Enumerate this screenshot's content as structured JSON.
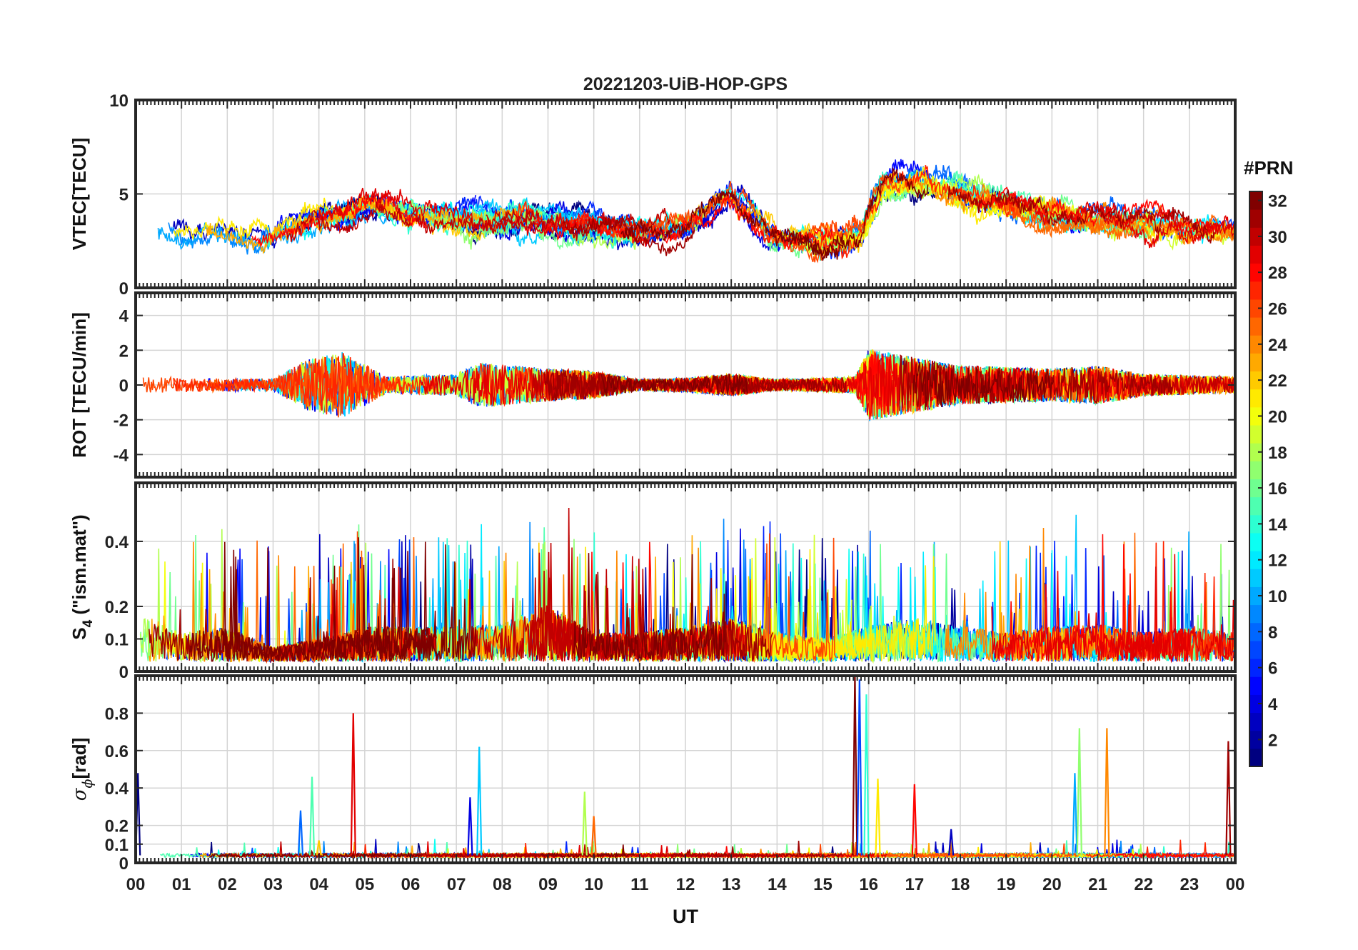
{
  "chart_data": {
    "type": "line",
    "title": "20221203-UiB-HOP-GPS",
    "xlabel": "UT",
    "x_range_hours": [
      0,
      24
    ],
    "x_ticks": [
      "00",
      "01",
      "02",
      "03",
      "04",
      "05",
      "06",
      "07",
      "08",
      "09",
      "10",
      "11",
      "12",
      "13",
      "14",
      "15",
      "16",
      "17",
      "18",
      "19",
      "20",
      "21",
      "22",
      "23",
      "00"
    ],
    "grid": true,
    "colorbar": {
      "title": "#PRN",
      "range": [
        1,
        32
      ],
      "ticks": [
        "2",
        "4",
        "6",
        "8",
        "10",
        "12",
        "14",
        "16",
        "18",
        "20",
        "22",
        "24",
        "26",
        "28",
        "30",
        "32"
      ],
      "colormap": "jet",
      "placement": "right"
    },
    "panels": [
      {
        "id": "vtec",
        "ylabel_parts": [
          "VTEC[TECU]"
        ],
        "ylim": [
          0,
          10
        ],
        "yticks": [
          0,
          5,
          10
        ],
        "ytick_labels": [
          "0",
          "5",
          "10"
        ],
        "activity_profile": [
          [
            0,
            3.3
          ],
          [
            2,
            2.8
          ],
          [
            3,
            2.6
          ],
          [
            4,
            3.8
          ],
          [
            5,
            4.3
          ],
          [
            7,
            3.7
          ],
          [
            8,
            3.6
          ],
          [
            9,
            3.7
          ],
          [
            10,
            3.4
          ],
          [
            11,
            3.0
          ],
          [
            12,
            3.3
          ],
          [
            13,
            4.8
          ],
          [
            14,
            2.6
          ],
          [
            15,
            2.4
          ],
          [
            15.8,
            2.8
          ],
          [
            16.3,
            5.3
          ],
          [
            17,
            5.6
          ],
          [
            18,
            5.0
          ],
          [
            19,
            4.4
          ],
          [
            20,
            4.0
          ],
          [
            21,
            3.7
          ],
          [
            22,
            3.5
          ],
          [
            23,
            3.2
          ],
          [
            24,
            3.0
          ]
        ],
        "amplitude": 1.2
      },
      {
        "id": "rot",
        "ylabel_parts": [
          "ROT [TECU/min]"
        ],
        "ylim": [
          -5.3,
          5.3
        ],
        "yticks": [
          -4,
          -2,
          0,
          2,
          4
        ],
        "ytick_labels": [
          "-4",
          "-2",
          "0",
          "2",
          "4"
        ],
        "activity_profile": [
          [
            0,
            0.3
          ],
          [
            3,
            0.2
          ],
          [
            3.7,
            0.9
          ],
          [
            4.5,
            1.2
          ],
          [
            5.5,
            0.3
          ],
          [
            7,
            0.4
          ],
          [
            7.5,
            0.8
          ],
          [
            9,
            0.6
          ],
          [
            10,
            0.5
          ],
          [
            11,
            0.2
          ],
          [
            12,
            0.25
          ],
          [
            13,
            0.4
          ],
          [
            14,
            0.2
          ],
          [
            15.7,
            0.3
          ],
          [
            16,
            1.3
          ],
          [
            17,
            1.0
          ],
          [
            18,
            0.7
          ],
          [
            20,
            0.6
          ],
          [
            21,
            0.7
          ],
          [
            22,
            0.4
          ],
          [
            24,
            0.3
          ]
        ],
        "amplitude": 1.0
      },
      {
        "id": "s4",
        "ylabel_parts": [
          "S",
          "4",
          " (\"ism.mat\")"
        ],
        "ylim": [
          0,
          0.58
        ],
        "yticks": [
          0,
          0.1,
          0.2,
          0.4
        ],
        "ytick_labels": [
          "0",
          "0.1",
          "0.2",
          "0.4"
        ],
        "activity_profile": [
          [
            0,
            0.18
          ],
          [
            1,
            0.1
          ],
          [
            2,
            0.12
          ],
          [
            3,
            0.05
          ],
          [
            4,
            0.08
          ],
          [
            5,
            0.12
          ],
          [
            7,
            0.12
          ],
          [
            8,
            0.13
          ],
          [
            9,
            0.2
          ],
          [
            10,
            0.1
          ],
          [
            11,
            0.1
          ],
          [
            12,
            0.12
          ],
          [
            13,
            0.15
          ],
          [
            14,
            0.1
          ],
          [
            15,
            0.08
          ],
          [
            16,
            0.12
          ],
          [
            17,
            0.15
          ],
          [
            18,
            0.12
          ],
          [
            19,
            0.1
          ],
          [
            20,
            0.12
          ],
          [
            21,
            0.13
          ],
          [
            22,
            0.1
          ],
          [
            23,
            0.12
          ],
          [
            24,
            0.1
          ]
        ],
        "amplitude": 0.1
      },
      {
        "id": "sigma_phi",
        "ylabel_parts": [
          "σ",
          "ϕ",
          "[rad]"
        ],
        "ylim": [
          0,
          1.0
        ],
        "yticks": [
          0,
          0.1,
          0.2,
          0.4,
          0.6,
          0.8
        ],
        "ytick_labels": [
          "0",
          "0.1",
          "0.2",
          "0.4",
          "0.6",
          "0.8"
        ],
        "activity_profile": [
          [
            0,
            0.05
          ],
          [
            24,
            0.05
          ]
        ],
        "amplitude": 0.02,
        "spikes": [
          [
            0.05,
            0.48
          ],
          [
            3.6,
            0.28
          ],
          [
            3.85,
            0.46
          ],
          [
            4.0,
            0.12
          ],
          [
            4.75,
            0.8
          ],
          [
            7.3,
            0.35
          ],
          [
            7.5,
            0.62
          ],
          [
            9.8,
            0.38
          ],
          [
            10.0,
            0.25
          ],
          [
            15.7,
            1.0
          ],
          [
            15.8,
            0.98
          ],
          [
            15.95,
            0.9
          ],
          [
            16.2,
            0.45
          ],
          [
            17.0,
            0.42
          ],
          [
            17.8,
            0.18
          ],
          [
            20.5,
            0.48
          ],
          [
            20.6,
            0.72
          ],
          [
            21.2,
            0.72
          ],
          [
            23.85,
            0.65
          ]
        ]
      }
    ]
  }
}
